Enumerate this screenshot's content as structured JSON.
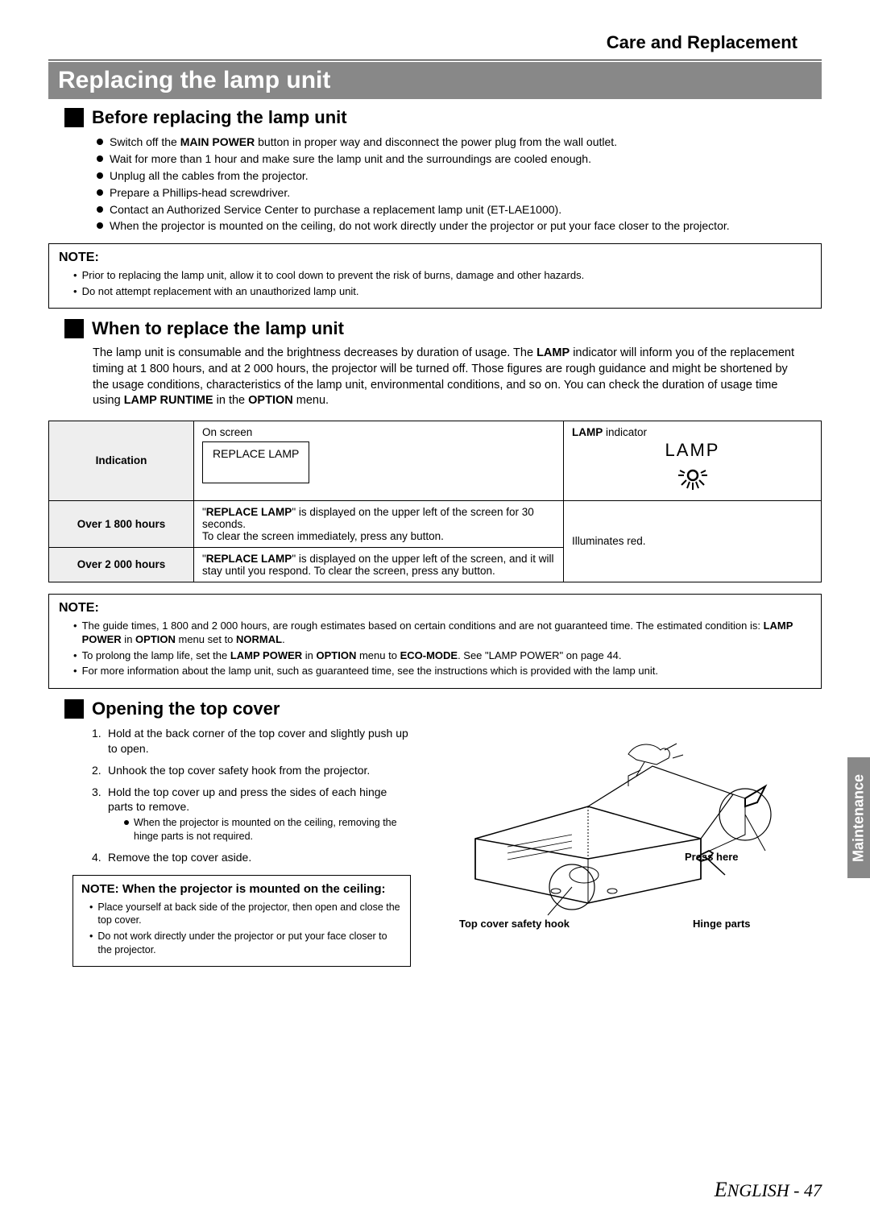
{
  "header": {
    "title": "Care and Replacement"
  },
  "titleBar": "Replacing the lamp unit",
  "sec1": {
    "title": "Before replacing the lamp unit",
    "items": [
      "Switch off the <b>MAIN POWER</b> button in proper way and disconnect the power plug from the wall outlet.",
      "Wait for more than 1 hour and make sure the lamp unit and the surroundings are cooled enough.",
      "Unplug all the cables from the projector.",
      "Prepare a Phillips-head screwdriver.",
      "Contact an Authorized Service Center to purchase a replacement lamp unit (ET-LAE1000).",
      "When the projector is mounted on the ceiling, do not work directly under the projector or put your face closer to the projector."
    ]
  },
  "note1": {
    "title": "NOTE:",
    "items": [
      "Prior to replacing the lamp unit, allow it to cool down to prevent the risk of burns, damage and other hazards.",
      "Do not attempt replacement with an unauthorized lamp unit."
    ]
  },
  "sec2": {
    "title": "When to replace the lamp unit",
    "para": "The lamp unit is consumable and the brightness decreases by duration of usage. The <b>LAMP</b> indicator will inform you of the replacement timing at 1 800 hours, and at 2 000 hours, the projector will be turned off. Those figures are rough guidance and might be shortened by the usage conditions, characteristics of the lamp unit, environmental conditions, and so on. You can check the duration of usage time using <b>LAMP RUNTIME</b> in the <b>OPTION</b> menu."
  },
  "table": {
    "row1": {
      "label": "Indication",
      "onscreen": "On screen",
      "replace": "REPLACE LAMP",
      "lampind": "<b>LAMP</b> indicator",
      "lampText": "LAMP"
    },
    "row2": {
      "label": "Over 1 800 hours",
      "text": "\"<b>REPLACE LAMP</b>\" is displayed on the upper left of the screen for 30 seconds.<br>To clear the screen immediately, press any button."
    },
    "row3": {
      "label": "Over 2 000 hours",
      "text": "\"<b>REPLACE LAMP</b>\" is displayed on the upper left of the screen, and it will stay until you respond. To clear the screen, press any button."
    },
    "merged": "Illuminates red."
  },
  "note2": {
    "title": "NOTE:",
    "items": [
      "The guide times, 1 800 and 2 000 hours, are rough estimates based on certain conditions and are not guaranteed time. The estimated condition is: <b>LAMP POWER</b> in <b>OPTION</b> menu set to <b>NORMAL</b>.",
      "To prolong the lamp life, set the <b>LAMP POWER</b> in <b>OPTION</b> menu to <b>ECO-MODE</b>. See \"LAMP POWER\" on page 44.",
      "For more information about the lamp unit, such as guaranteed time, see the instructions which is provided with the lamp unit."
    ]
  },
  "sec3": {
    "title": "Opening the top cover",
    "items": [
      "Hold at the back corner of the top cover and slightly push up to open.",
      "Unhook the top cover safety hook from the projector.",
      "Hold the top cover up and press the sides of each hinge parts to remove.",
      "Remove the top cover aside."
    ],
    "subItem": "When the projector is mounted on the ceiling, removing the hinge parts is not required."
  },
  "ceilingNote": {
    "title": "NOTE: When the projector is mounted on the ceiling:",
    "items": [
      "Place yourself at back side of the projector, then open and close the top cover.",
      "Do not work directly under the projector or put your face closer to the projector."
    ]
  },
  "diagram": {
    "pressHere": "Press here",
    "hookLabel": "Top cover safety hook",
    "hingeLabel": "Hinge parts"
  },
  "sidebar": "Maintenance",
  "footer": {
    "lang": "ENGLISH",
    "page": "47"
  }
}
